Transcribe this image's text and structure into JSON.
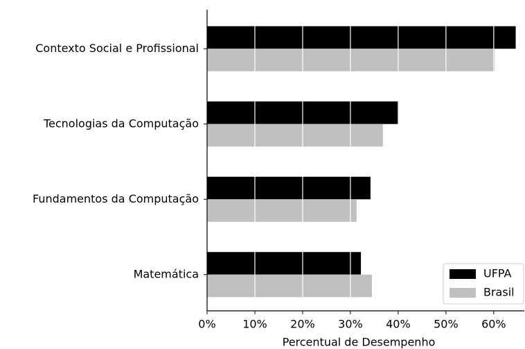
{
  "chart_data": {
    "type": "bar",
    "orientation": "horizontal",
    "categories": [
      "Contexto Social e Profissional",
      "Tecnologias da Computação",
      "Fundamentos da Computação",
      "Matemática"
    ],
    "series": [
      {
        "name": "UFPA",
        "color": "#000000",
        "values": [
          64.6,
          40.1,
          34.2,
          32.2
        ]
      },
      {
        "name": "Brasil",
        "color": "#c0c0c0",
        "values": [
          60.2,
          36.8,
          31.3,
          34.5
        ]
      }
    ],
    "xlabel": "Percentual de Desempenho",
    "xlim": [
      0,
      66.4
    ],
    "xticks": [
      {
        "value": 0,
        "label": "0%"
      },
      {
        "value": 10,
        "label": "10%"
      },
      {
        "value": 20,
        "label": "20%"
      },
      {
        "value": 30,
        "label": "30%"
      },
      {
        "value": 40,
        "label": "40%"
      },
      {
        "value": 50,
        "label": "50%"
      },
      {
        "value": 60,
        "label": "60%"
      }
    ],
    "grid": true,
    "grid_color": "#ffffff",
    "legend": "lower right"
  }
}
